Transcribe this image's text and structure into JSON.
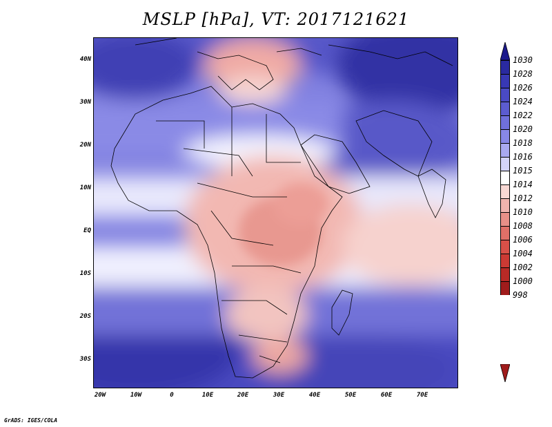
{
  "title": "MSLP [hPa], VT: 2017121621",
  "credit": "GrADS: IGES/COLA",
  "lat_labels": [
    "40N",
    "30N",
    "20N",
    "10N",
    "EQ",
    "10S",
    "20S",
    "30S"
  ],
  "lon_labels": [
    "20W",
    "10W",
    "0",
    "10E",
    "20E",
    "30E",
    "40E",
    "50E",
    "60E",
    "70E"
  ],
  "colorbar": {
    "levels": [
      "1030",
      "1028",
      "1026",
      "1024",
      "1022",
      "1020",
      "1018",
      "1016",
      "1015",
      "1014",
      "1012",
      "1010",
      "1008",
      "1006",
      "1004",
      "1002",
      "1000",
      "998"
    ],
    "colors": [
      "#1c1a8c",
      "#2a2aa0",
      "#3838b4",
      "#4a4ac4",
      "#5c5cd0",
      "#7070dc",
      "#8888e6",
      "#aaaaf0",
      "#d4d4f8",
      "#ffffff",
      "#f8d8d4",
      "#f0b4ae",
      "#e89088",
      "#e07068",
      "#d85048",
      "#cc3a34",
      "#b82a26",
      "#a01c1c"
    ]
  }
}
